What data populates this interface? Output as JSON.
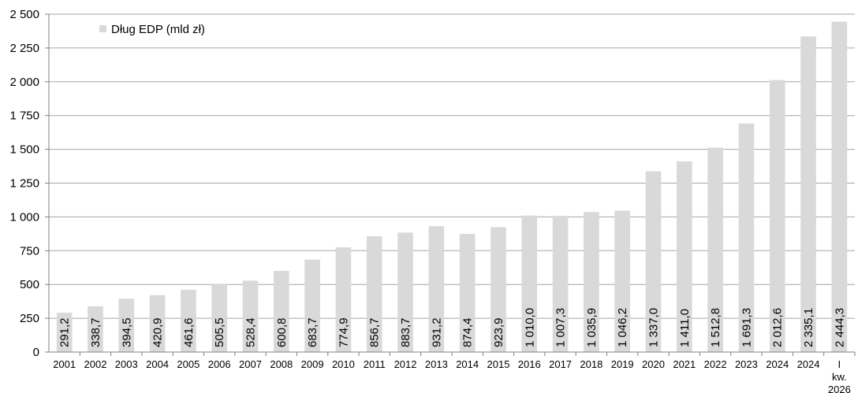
{
  "chart_data": {
    "type": "bar",
    "title": "",
    "xlabel": "",
    "ylabel": "",
    "ylim": [
      0,
      2500
    ],
    "yticks": [
      0,
      250,
      500,
      750,
      1000,
      1250,
      1500,
      1750,
      2000,
      2250,
      2500
    ],
    "ytick_labels": [
      "0",
      "250",
      "500",
      "750",
      "1 000",
      "1 250",
      "1 500",
      "1 750",
      "2 000",
      "2 250",
      "2 500"
    ],
    "grid": true,
    "legend_position": "top-left",
    "categories": [
      "2001",
      "2002",
      "2003",
      "2004",
      "2005",
      "2006",
      "2007",
      "2008",
      "2009",
      "2010",
      "2011",
      "2012",
      "2013",
      "2014",
      "2015",
      "2016",
      "2017",
      "2018",
      "2019",
      "2020",
      "2021",
      "2022",
      "2023",
      "2024",
      "2024",
      "I kw. 2026"
    ],
    "series": [
      {
        "name": "Dług EDP (mld zł)",
        "color": "#d9d9d9",
        "values": [
          291.2,
          338.7,
          394.5,
          420.9,
          461.6,
          505.5,
          528.4,
          600.8,
          683.7,
          774.9,
          856.7,
          883.7,
          931.2,
          874.4,
          923.9,
          1010.0,
          1007.3,
          1035.9,
          1046.2,
          1337.0,
          1411.0,
          1512.8,
          1691.3,
          2012.6,
          2335.1,
          2444.3
        ],
        "labels": [
          "291,2",
          "338,7",
          "394,5",
          "420,9",
          "461,6",
          "505,5",
          "528,4",
          "600,8",
          "683,7",
          "774,9",
          "856,7",
          "883,7",
          "931,2",
          "874,4",
          "923,9",
          "1 010,0",
          "1 007,3",
          "1 035,9",
          "1 046,2",
          "1 337,0",
          "1 411,0",
          "1 512,8",
          "1 691,3",
          "2 012,6",
          "2 335,1",
          "2 444,3"
        ]
      }
    ]
  }
}
